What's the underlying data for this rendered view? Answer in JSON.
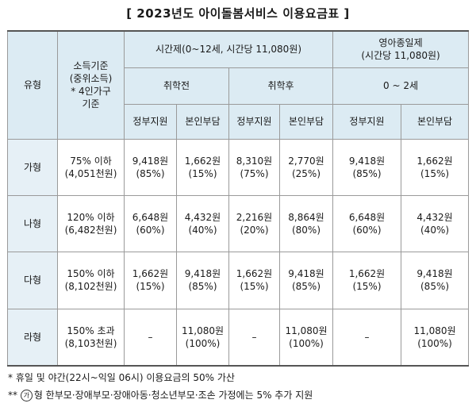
{
  "title": "[ 2023년도 아이돌봄서비스 이용요금표 ]",
  "header": {
    "type": "유형",
    "income_lines": [
      "소득기준",
      "(중위소득)",
      "* 4인가구",
      "기준"
    ],
    "hourly": "시간제(0~12세, 시간당 11,080원)",
    "infant_lines": [
      "영아종일제",
      "(시간당 11,080원)"
    ],
    "pre_school": "취학전",
    "post_school": "취학후",
    "infant_age": "0 ~ 2세",
    "gov": "정부지원",
    "self": "본인부담"
  },
  "rows": [
    {
      "type": "가형",
      "income": [
        "75% 이하",
        "(4,051천원)"
      ],
      "cells": [
        [
          "9,418원",
          "(85%)"
        ],
        [
          "1,662원",
          "(15%)"
        ],
        [
          "8,310원",
          "(75%)"
        ],
        [
          "2,770원",
          "(25%)"
        ],
        [
          "9,418원",
          "(85%)"
        ],
        [
          "1,662원",
          "(15%)"
        ]
      ]
    },
    {
      "type": "나형",
      "income": [
        "120% 이하",
        "(6,482천원)"
      ],
      "cells": [
        [
          "6,648원",
          "(60%)"
        ],
        [
          "4,432원",
          "(40%)"
        ],
        [
          "2,216원",
          "(20%)"
        ],
        [
          "8,864원",
          "(80%)"
        ],
        [
          "6,648원",
          "(60%)"
        ],
        [
          "4,432원",
          "(40%)"
        ]
      ]
    },
    {
      "type": "다형",
      "income": [
        "150% 이하",
        "(8,102천원)"
      ],
      "cells": [
        [
          "1,662원",
          "(15%)"
        ],
        [
          "9,418원",
          "(85%)"
        ],
        [
          "1,662원",
          "(15%)"
        ],
        [
          "9,418원",
          "(85%)"
        ],
        [
          "1,662원",
          "(15%)"
        ],
        [
          "9,418원",
          "(85%)"
        ]
      ]
    },
    {
      "type": "라형",
      "income": [
        "150% 초과",
        "(8,103천원)"
      ],
      "cells": [
        [
          "–",
          ""
        ],
        [
          "11,080원",
          "(100%)"
        ],
        [
          "–",
          ""
        ],
        [
          "11,080원",
          "(100%)"
        ],
        [
          "–",
          ""
        ],
        [
          "11,080원",
          "(100%)"
        ]
      ]
    }
  ],
  "notes": {
    "n1": "* 휴일 및 야간(22시~익일 06시) 이용요금의 50% 가산",
    "n2_prefix": "**",
    "n2_circle": "가",
    "n2_text": "형 한부모·장애부모·장애아동·청소년부모·조손 가정에는 5% 추가 지원"
  }
}
